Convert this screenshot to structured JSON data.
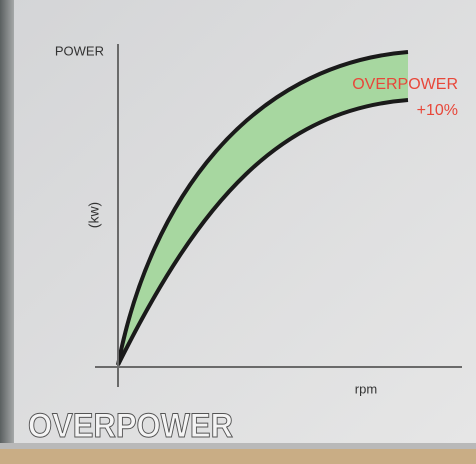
{
  "axis_labels": {
    "y": "POWER",
    "y_unit": "(kw)",
    "x": "rpm"
  },
  "annotation": {
    "label": "OVERPOWER",
    "value": "+10%"
  },
  "banner": {
    "title": "OVERPOWER"
  }
}
